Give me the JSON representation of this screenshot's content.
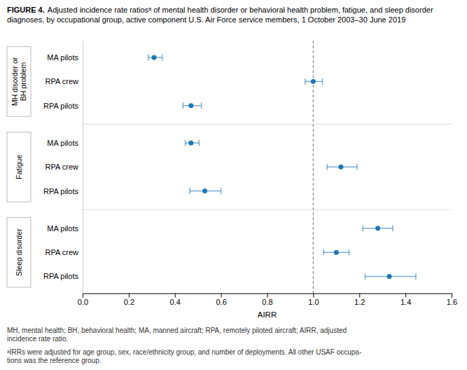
{
  "chart_data": {
    "type": "forest",
    "title": "FIGURE 4.",
    "subtitle": "Adjusted incidence rate ratiosᵃ of mental health disorder or behavioral health problem, fatigue, and sleep disorder diagnoses, by occupational group, active component U.S. Air Force service members, 1 October 2003–30 June 2019",
    "x_label": "AIRR",
    "series": [
      {
        "name": "MH disorder or\nBH problem",
        "categories": [
          "MA pilots",
          "RPA crew",
          "RPA pilots"
        ],
        "values": [
          0.31,
          1.0,
          0.47
        ],
        "lo": [
          0.285,
          0.965,
          0.435
        ],
        "hi": [
          0.345,
          1.04,
          0.515
        ]
      },
      {
        "name": "Fatigue",
        "categories": [
          "MA pilots",
          "RPA crew",
          "RPA pilots"
        ],
        "values": [
          0.47,
          1.12,
          0.53
        ],
        "lo": [
          0.445,
          1.06,
          0.465
        ],
        "hi": [
          0.505,
          1.19,
          0.6
        ]
      },
      {
        "name": "Sleep disorder",
        "categories": [
          "MA pilots",
          "RPA crew",
          "RPA pilots"
        ],
        "values": [
          1.28,
          1.1,
          1.33
        ],
        "lo": [
          1.215,
          1.045,
          1.225
        ],
        "hi": [
          1.345,
          1.155,
          1.445
        ]
      }
    ],
    "reference_line": 1.0,
    "xlim": [
      0.0,
      1.6
    ],
    "xticks": [
      {
        "value": 0,
        "label": "0.0"
      },
      0.2,
      0.4,
      0.6,
      0.8,
      {
        "value": 1,
        "label": "1.0"
      },
      1.2,
      1.4,
      1.6
    ],
    "annotations": [
      "MH, mental health; BH, behavioral health; MA, manned aircraft; RPA, remotely piloted aircraft; AIRR, adjusted\nincidence rate ratio.",
      "ᵃIRRs were adjusted for age group, sex, race/ethnicity group, and number of deployments. All other USAF occupa-\ntions was the reference group."
    ]
  }
}
